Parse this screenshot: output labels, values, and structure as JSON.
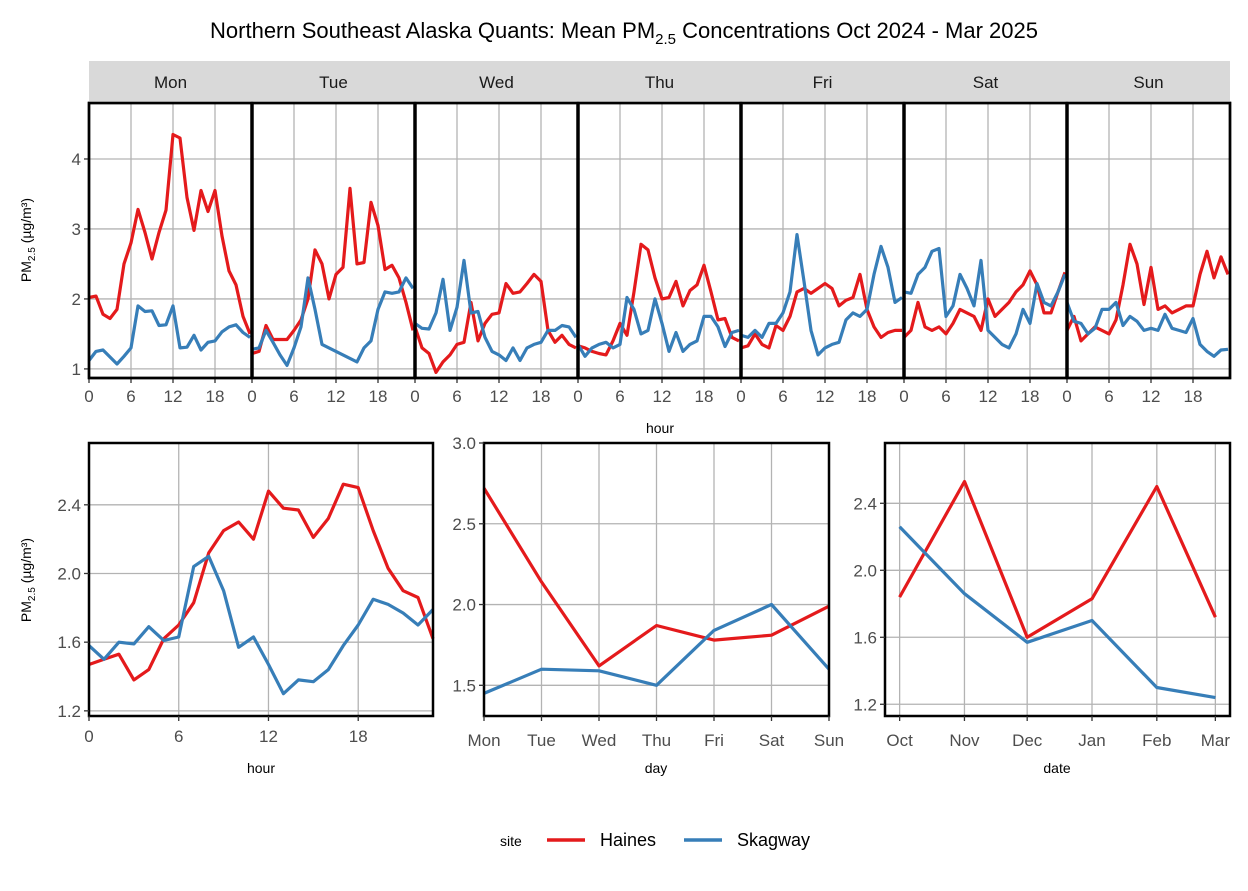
{
  "title": {
    "prefix": "Northern Southeast Alaska Quants: Mean PM",
    "sub": "2.5",
    "suffix": " Concentrations Oct 2024 - Mar 2025"
  },
  "ylabel": {
    "prefix": "PM",
    "sub": "2.5",
    "suffix": " (µg/m³)"
  },
  "legend": {
    "title": "site",
    "entries": [
      "Haines",
      "Skagway"
    ],
    "position": "bottom"
  },
  "colors": {
    "Haines": "#e41a1c",
    "Skagway": "#377eb8"
  },
  "chart_data": [
    {
      "type": "line",
      "panel": "day-hour",
      "facets": [
        "Mon",
        "Tue",
        "Wed",
        "Thu",
        "Fri",
        "Sat",
        "Sun"
      ],
      "xlabel": "hour",
      "xlim": [
        0,
        23
      ],
      "xticks": [
        0,
        6,
        12,
        18
      ],
      "ylim": [
        0.87,
        4.8
      ],
      "yticks": [
        1,
        2,
        3,
        4
      ],
      "grid": true,
      "series": [
        {
          "name": "Haines",
          "values": {
            "Mon": [
              2.02,
              2.04,
              1.78,
              1.72,
              1.85,
              2.5,
              2.8,
              3.28,
              2.95,
              2.57,
              2.95,
              3.27,
              4.35,
              4.3,
              3.45,
              2.98,
              3.55,
              3.25,
              3.55,
              2.9,
              2.4,
              2.2,
              1.75,
              1.5
            ],
            "Tue": [
              1.22,
              1.25,
              1.62,
              1.42,
              1.42,
              1.42,
              1.55,
              1.7,
              2.0,
              2.7,
              2.5,
              2.0,
              2.35,
              2.45,
              3.58,
              2.5,
              2.52,
              3.38,
              3.05,
              2.42,
              2.48,
              2.3,
              1.95,
              1.55
            ],
            "Wed": [
              1.6,
              1.3,
              1.22,
              0.95,
              1.1,
              1.2,
              1.35,
              1.38,
              1.95,
              1.4,
              1.65,
              1.78,
              1.8,
              2.22,
              2.08,
              2.1,
              2.22,
              2.35,
              2.25,
              1.55,
              1.38,
              1.48,
              1.35,
              1.3
            ],
            "Thu": [
              1.33,
              1.3,
              1.25,
              1.22,
              1.2,
              1.4,
              1.65,
              1.48,
              2.1,
              2.78,
              2.7,
              2.3,
              2.0,
              2.02,
              2.25,
              1.9,
              2.12,
              2.2,
              2.48,
              2.1,
              1.7,
              1.72,
              1.45,
              1.4
            ],
            "Fri": [
              1.3,
              1.33,
              1.5,
              1.35,
              1.3,
              1.62,
              1.55,
              1.75,
              2.1,
              2.15,
              2.08,
              2.15,
              2.22,
              2.15,
              1.9,
              1.98,
              2.02,
              2.35,
              1.85,
              1.6,
              1.45,
              1.52,
              1.55,
              1.55
            ],
            "Sat": [
              1.45,
              1.55,
              1.95,
              1.6,
              1.55,
              1.6,
              1.5,
              1.65,
              1.85,
              1.8,
              1.75,
              1.55,
              2.0,
              1.75,
              1.85,
              1.95,
              2.1,
              2.2,
              2.4,
              2.2,
              1.8,
              1.8,
              2.1,
              2.38
            ],
            "Sun": [
              1.55,
              1.75,
              1.4,
              1.5,
              1.6,
              1.55,
              1.5,
              1.7,
              2.2,
              2.78,
              2.5,
              1.92,
              2.45,
              1.85,
              1.9,
              1.8,
              1.85,
              1.9,
              1.9,
              2.35,
              2.68,
              2.3,
              2.6,
              2.35
            ]
          }
        },
        {
          "name": "Skagway",
          "values": {
            "Mon": [
              1.12,
              1.25,
              1.27,
              1.17,
              1.07,
              1.18,
              1.3,
              1.9,
              1.82,
              1.83,
              1.62,
              1.63,
              1.9,
              1.3,
              1.31,
              1.48,
              1.27,
              1.38,
              1.4,
              1.53,
              1.6,
              1.63,
              1.52,
              1.45
            ],
            "Tue": [
              1.28,
              1.3,
              1.55,
              1.38,
              1.2,
              1.05,
              1.3,
              1.6,
              2.3,
              1.85,
              1.35,
              1.3,
              1.25,
              1.2,
              1.15,
              1.1,
              1.3,
              1.4,
              1.85,
              2.1,
              2.08,
              2.1,
              2.3,
              2.15
            ],
            "Wed": [
              1.65,
              1.58,
              1.57,
              1.8,
              2.28,
              1.55,
              1.88,
              2.55,
              1.8,
              1.82,
              1.45,
              1.25,
              1.2,
              1.12,
              1.3,
              1.12,
              1.3,
              1.35,
              1.38,
              1.55,
              1.55,
              1.62,
              1.6,
              1.45
            ],
            "Thu": [
              1.35,
              1.18,
              1.3,
              1.35,
              1.38,
              1.3,
              1.35,
              2.02,
              1.85,
              1.5,
              1.55,
              2.0,
              1.65,
              1.25,
              1.52,
              1.25,
              1.35,
              1.4,
              1.75,
              1.75,
              1.6,
              1.32,
              1.52,
              1.55
            ],
            "Fri": [
              1.48,
              1.45,
              1.55,
              1.45,
              1.65,
              1.65,
              1.8,
              2.1,
              2.92,
              2.25,
              1.55,
              1.2,
              1.3,
              1.35,
              1.38,
              1.7,
              1.8,
              1.75,
              1.85,
              2.35,
              2.75,
              2.45,
              1.95,
              2.02
            ],
            "Sat": [
              2.1,
              2.08,
              2.35,
              2.45,
              2.68,
              2.72,
              1.75,
              1.9,
              2.35,
              2.15,
              1.9,
              2.55,
              1.55,
              1.45,
              1.35,
              1.3,
              1.5,
              1.85,
              1.65,
              2.22,
              1.95,
              1.9,
              2.1,
              2.35
            ],
            "Sun": [
              1.95,
              1.68,
              1.65,
              1.5,
              1.58,
              1.85,
              1.85,
              1.95,
              1.62,
              1.75,
              1.68,
              1.55,
              1.58,
              1.55,
              1.78,
              1.58,
              1.55,
              1.52,
              1.72,
              1.35,
              1.25,
              1.18,
              1.27,
              1.28
            ]
          }
        }
      ]
    },
    {
      "type": "line",
      "panel": "hour",
      "xlabel": "hour",
      "x": [
        0,
        1,
        2,
        3,
        4,
        5,
        6,
        7,
        8,
        9,
        10,
        11,
        12,
        13,
        14,
        15,
        16,
        17,
        18,
        19,
        20,
        21,
        22,
        23
      ],
      "xlim": [
        0,
        23
      ],
      "xticks": [
        0,
        6,
        12,
        18
      ],
      "ylim": [
        1.17,
        2.76
      ],
      "yticks": [
        1.2,
        1.6,
        2.0,
        2.4
      ],
      "ytick_labels": [
        "1.2",
        "1.6",
        "2.0",
        "2.4"
      ],
      "grid": true,
      "series": [
        {
          "name": "Haines",
          "values": [
            1.47,
            1.5,
            1.53,
            1.38,
            1.44,
            1.62,
            1.7,
            1.83,
            2.12,
            2.25,
            2.3,
            2.2,
            2.48,
            2.38,
            2.37,
            2.21,
            2.32,
            2.52,
            2.5,
            2.25,
            2.03,
            1.9,
            1.86,
            1.62
          ]
        },
        {
          "name": "Skagway",
          "values": [
            1.58,
            1.5,
            1.6,
            1.59,
            1.69,
            1.61,
            1.63,
            2.04,
            2.1,
            1.9,
            1.57,
            1.63,
            1.47,
            1.3,
            1.38,
            1.37,
            1.44,
            1.58,
            1.7,
            1.85,
            1.82,
            1.77,
            1.7,
            1.79
          ]
        }
      ]
    },
    {
      "type": "line",
      "panel": "day",
      "xlabel": "day",
      "categories": [
        "Mon",
        "Tue",
        "Wed",
        "Thu",
        "Fri",
        "Sat",
        "Sun"
      ],
      "ylim": [
        1.31,
        3.0
      ],
      "yticks": [
        1.5,
        2.0,
        2.5,
        3.0
      ],
      "ytick_labels": [
        "1.5",
        "2.0",
        "2.5",
        "3.0"
      ],
      "grid": true,
      "series": [
        {
          "name": "Haines",
          "values": [
            2.72,
            2.14,
            1.62,
            1.87,
            1.78,
            1.81,
            1.99
          ]
        },
        {
          "name": "Skagway",
          "values": [
            1.45,
            1.6,
            1.59,
            1.5,
            1.84,
            2.0,
            1.6
          ]
        }
      ]
    },
    {
      "type": "line",
      "panel": "month",
      "xlabel": "date",
      "categories": [
        "Oct",
        "Nov",
        "Dec",
        "Jan",
        "Feb",
        "Mar"
      ],
      "x": [
        "2024-10-01",
        "2024-11-01",
        "2024-12-01",
        "2025-01-01",
        "2025-02-01",
        "2025-03-01"
      ],
      "xlim": [
        "2024-09-24",
        "2025-03-08"
      ],
      "ylim": [
        1.13,
        2.76
      ],
      "yticks": [
        1.2,
        1.6,
        2.0,
        2.4
      ],
      "ytick_labels": [
        "1.2",
        "1.6",
        "2.0",
        "2.4"
      ],
      "grid": true,
      "series": [
        {
          "name": "Haines",
          "values": [
            1.84,
            2.53,
            1.6,
            1.83,
            2.5,
            1.72
          ]
        },
        {
          "name": "Skagway",
          "values": [
            2.26,
            1.86,
            1.57,
            1.7,
            1.3,
            1.24
          ]
        }
      ]
    }
  ]
}
